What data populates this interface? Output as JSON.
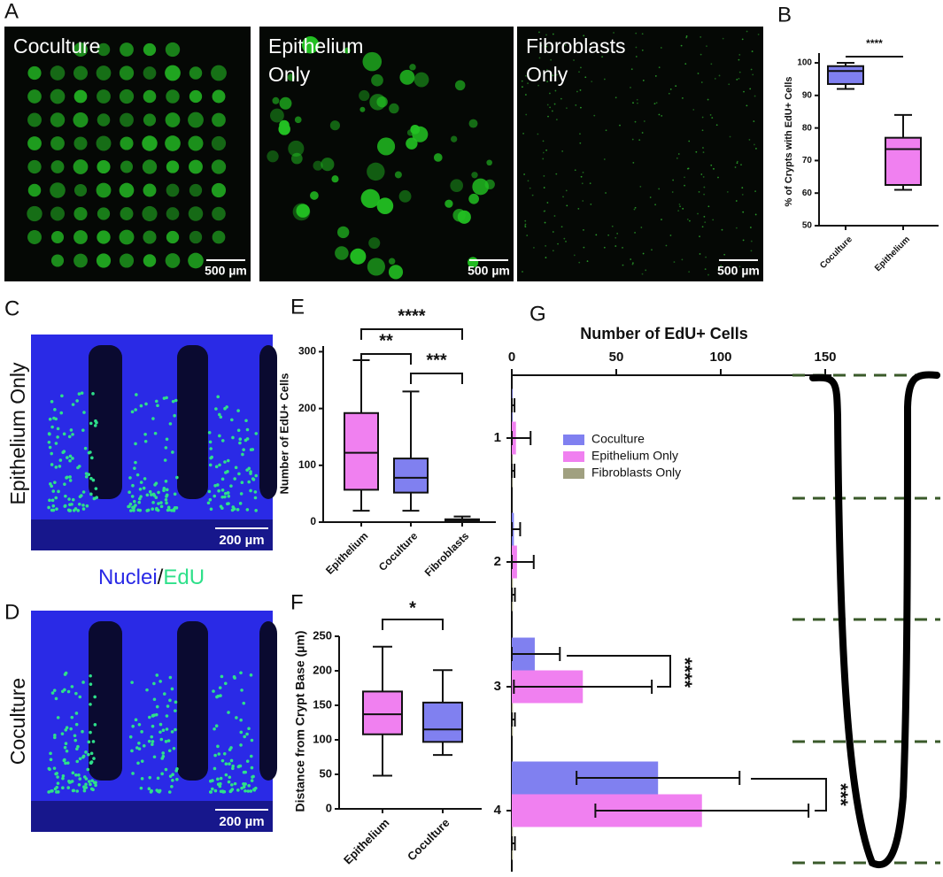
{
  "figure": {
    "panel_letters": [
      "A",
      "B",
      "C",
      "D",
      "E",
      "F",
      "G"
    ],
    "panel_a": [
      {
        "label": [
          "Coculture"
        ],
        "scale_bar": "500 µm"
      },
      {
        "label": [
          "Epithelium",
          "Only"
        ],
        "scale_bar": "500 µm"
      },
      {
        "label": [
          "Fibroblasts",
          "Only"
        ],
        "scale_bar": "500 µm"
      }
    ],
    "panel_c": {
      "side_label": "Epithelium Only",
      "scale_bar": "200 µm"
    },
    "panel_d": {
      "side_label": "Coculture",
      "scale_bar": "200 µm"
    },
    "stain_legend": {
      "nuclei": "Nuclei",
      "separator": "/",
      "edu": "EdU",
      "nuclei_color": "#2a2ae6",
      "edu_color": "#2ee08a"
    }
  },
  "chart_data": [
    {
      "type": "box",
      "y_label": "% of Crypts with EdU+ Cells",
      "categories": [
        "Coculture",
        "Epithelium"
      ],
      "colors": [
        "#8080f0",
        "#f080f0"
      ],
      "boxes": [
        {
          "min": 92,
          "q1": 93.5,
          "median": 97.5,
          "q3": 99,
          "max": 100
        },
        {
          "min": 61,
          "q1": 62.5,
          "median": 73.5,
          "q3": 77,
          "max": 84
        }
      ],
      "ylim": [
        50,
        103
      ],
      "yticks": [
        50,
        60,
        70,
        80,
        90,
        100
      ],
      "significance": [
        "****"
      ]
    },
    {
      "type": "box",
      "y_label": "Number of EdU+ Cells",
      "categories": [
        "Epithelium",
        "Coculture",
        "Fibroblasts"
      ],
      "colors": [
        "#f080f0",
        "#8080f0",
        "#a0a080"
      ],
      "boxes": [
        {
          "min": 20,
          "q1": 57,
          "median": 122,
          "q3": 192,
          "max": 285
        },
        {
          "min": 20,
          "q1": 52,
          "median": 78,
          "q3": 112,
          "max": 230
        },
        {
          "min": 0,
          "q1": 2,
          "median": 3,
          "q3": 5,
          "max": 10
        }
      ],
      "ylim": [
        0,
        310
      ],
      "yticks": [
        0,
        100,
        200,
        300
      ],
      "significance": [
        "****",
        "**",
        "***"
      ]
    },
    {
      "type": "box",
      "y_label": "Distance from Crypt Base (µm)",
      "categories": [
        "Epithelium",
        "Coculture"
      ],
      "colors": [
        "#f080f0",
        "#8080f0"
      ],
      "boxes": [
        {
          "min": 48,
          "q1": 108,
          "median": 137,
          "q3": 170,
          "max": 235
        },
        {
          "min": 78,
          "q1": 97,
          "median": 115,
          "q3": 154,
          "max": 201
        }
      ],
      "ylim": [
        0,
        250
      ],
      "yticks": [
        0,
        50,
        100,
        150,
        200,
        250
      ],
      "significance": [
        "*"
      ]
    },
    {
      "type": "hbar",
      "title": "Number of EdU+ Cells",
      "categories": [
        "1",
        "2",
        "3",
        "4"
      ],
      "series": [
        {
          "name": "Coculture",
          "color": "#8080f0",
          "values": [
            0.3,
            1,
            11,
            70
          ],
          "errors": [
            1,
            3,
            12,
            39
          ]
        },
        {
          "name": "Epithelium Only",
          "color": "#f080f0",
          "values": [
            2,
            2.5,
            34,
            91
          ],
          "errors": [
            7,
            8,
            33,
            51
          ]
        },
        {
          "name": "Fibroblasts Only",
          "color": "#a0a080",
          "values": [
            0.3,
            0.5,
            0.5,
            0.5
          ],
          "errors": [
            1,
            1,
            1,
            1
          ]
        }
      ],
      "xlim": [
        0,
        153
      ],
      "xticks": [
        0,
        50,
        100,
        150
      ],
      "significance": [
        "****",
        "***"
      ]
    }
  ]
}
